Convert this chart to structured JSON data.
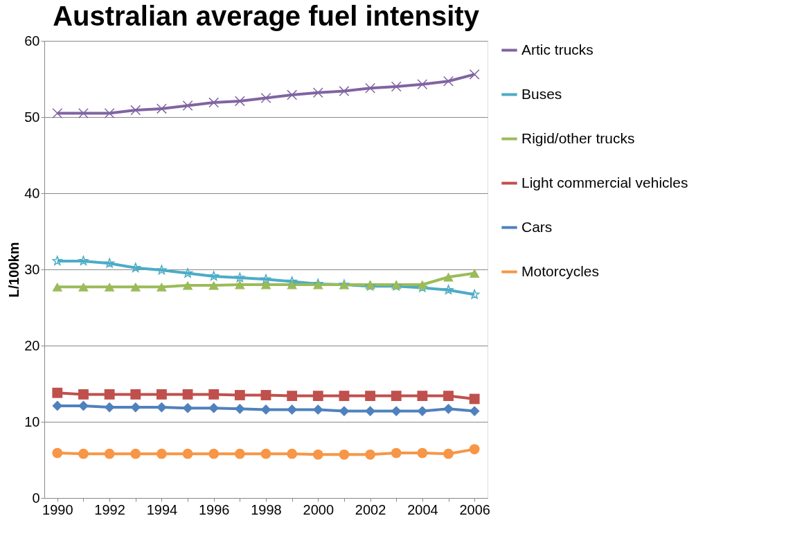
{
  "chart_data": {
    "type": "line",
    "title": "Australian average fuel intensity",
    "ylabel": "L/100km",
    "categories": [
      "1990",
      null,
      "1992",
      null,
      "1994",
      null,
      "1996",
      null,
      "1998",
      null,
      "2000",
      null,
      "2002",
      null,
      "2004",
      null,
      "2006"
    ],
    "ylim": [
      0,
      60
    ],
    "yticks": [
      0,
      10,
      20,
      30,
      40,
      50,
      60
    ],
    "grid": "y",
    "legend": "right",
    "line_style": "solid",
    "series": [
      {
        "name": "Artic trucks",
        "color": "#8064a2",
        "marker": "cross",
        "values": [
          50.5,
          50.5,
          50.5,
          50.9,
          51.1,
          51.5,
          51.9,
          52.1,
          52.5,
          52.9,
          53.2,
          53.4,
          53.8,
          54.0,
          54.3,
          54.7,
          55.6
        ]
      },
      {
        "name": "Buses",
        "color": "#4bacc6",
        "marker": "star",
        "values": [
          31.1,
          31.1,
          30.8,
          30.2,
          29.9,
          29.5,
          29.1,
          28.9,
          28.7,
          28.4,
          28.1,
          28.0,
          27.8,
          27.8,
          27.6,
          27.3,
          26.7
        ]
      },
      {
        "name": "Rigid/other trucks",
        "color": "#9bbb59",
        "marker": "triangle",
        "values": [
          27.7,
          27.7,
          27.7,
          27.7,
          27.7,
          27.9,
          27.9,
          28.0,
          28.0,
          28.0,
          28.0,
          28.0,
          28.0,
          28.0,
          28.0,
          29.0,
          29.5
        ]
      },
      {
        "name": "Light commercial vehicles",
        "color": "#c0504d",
        "marker": "square",
        "values": [
          13.8,
          13.6,
          13.6,
          13.6,
          13.6,
          13.6,
          13.6,
          13.5,
          13.5,
          13.4,
          13.4,
          13.4,
          13.4,
          13.4,
          13.4,
          13.4,
          13.0
        ]
      },
      {
        "name": "Cars",
        "color": "#4f81bd",
        "marker": "diamond",
        "values": [
          12.1,
          12.1,
          11.9,
          11.9,
          11.9,
          11.8,
          11.8,
          11.7,
          11.6,
          11.6,
          11.6,
          11.4,
          11.4,
          11.4,
          11.4,
          11.7,
          11.4
        ]
      },
      {
        "name": "Motorcycles",
        "color": "#f79646",
        "marker": "circle",
        "values": [
          5.9,
          5.8,
          5.8,
          5.8,
          5.8,
          5.8,
          5.8,
          5.8,
          5.8,
          5.8,
          5.7,
          5.7,
          5.7,
          5.9,
          5.9,
          5.8,
          6.4
        ]
      }
    ]
  }
}
